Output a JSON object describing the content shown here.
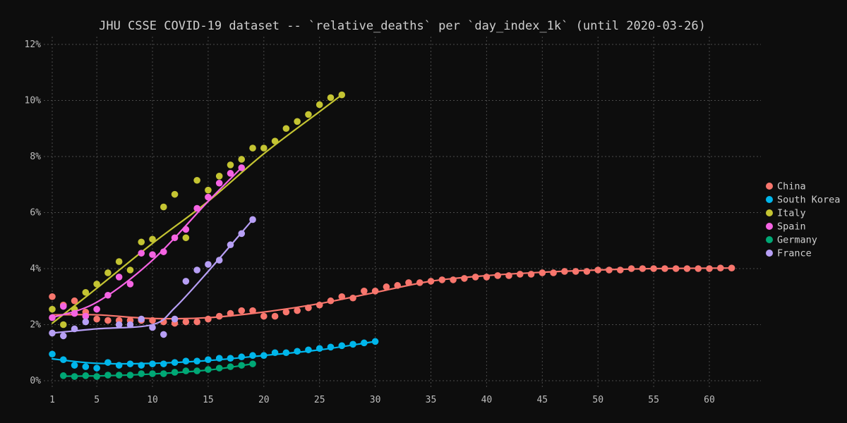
{
  "chart_data": {
    "type": "scatter",
    "title": "JHU CSSE COVID-19 dataset -- `relative_deaths` per `day_index_1k` (until 2020-03-26)",
    "xlabel": "",
    "ylabel": "",
    "xlim": [
      0,
      65
    ],
    "ylim": [
      0,
      12
    ],
    "x_ticks": [
      1,
      5,
      10,
      15,
      20,
      25,
      30,
      35,
      40,
      45,
      50,
      55,
      60
    ],
    "x_tick_labels": [
      "1",
      "5",
      "10",
      "15",
      "20",
      "25",
      "30",
      "35",
      "40",
      "45",
      "50",
      "55",
      "60"
    ],
    "y_ticks": [
      0,
      2,
      4,
      6,
      8,
      10,
      12
    ],
    "y_tick_labels": [
      "0%",
      "2%",
      "4%",
      "6%",
      "8%",
      "10%",
      "12%"
    ],
    "grid": true,
    "legend_position": "right",
    "series": [
      {
        "name": "China",
        "color": "#f8766d",
        "x": [
          1,
          2,
          3,
          4,
          5,
          6,
          7,
          8,
          9,
          10,
          11,
          12,
          13,
          14,
          15,
          16,
          17,
          18,
          19,
          20,
          21,
          22,
          23,
          24,
          25,
          26,
          27,
          28,
          29,
          30,
          31,
          32,
          33,
          34,
          35,
          36,
          37,
          38,
          39,
          40,
          41,
          42,
          43,
          44,
          45,
          46,
          47,
          48,
          49,
          50,
          51,
          52,
          53,
          54,
          55,
          56,
          57,
          58,
          59,
          60,
          61,
          62
        ],
        "y": [
          3.0,
          2.7,
          2.85,
          2.45,
          2.2,
          2.15,
          2.15,
          2.15,
          2.15,
          2.15,
          2.1,
          2.05,
          2.1,
          2.1,
          2.2,
          2.3,
          2.4,
          2.5,
          2.5,
          2.3,
          2.3,
          2.45,
          2.5,
          2.6,
          2.7,
          2.85,
          3.0,
          2.95,
          3.2,
          3.2,
          3.35,
          3.4,
          3.5,
          3.5,
          3.55,
          3.6,
          3.6,
          3.65,
          3.7,
          3.7,
          3.75,
          3.75,
          3.8,
          3.8,
          3.85,
          3.85,
          3.9,
          3.9,
          3.9,
          3.95,
          3.95,
          3.95,
          4.0,
          4.0,
          4.0,
          4.0,
          4.0,
          4.0,
          4.0,
          4.0,
          4.02,
          4.02
        ],
        "trend": [
          [
            1,
            2.35
          ],
          [
            5,
            2.35
          ],
          [
            10,
            2.22
          ],
          [
            15,
            2.25
          ],
          [
            20,
            2.45
          ],
          [
            25,
            2.75
          ],
          [
            30,
            3.15
          ],
          [
            35,
            3.55
          ],
          [
            40,
            3.75
          ],
          [
            45,
            3.87
          ],
          [
            50,
            3.95
          ],
          [
            55,
            4.0
          ],
          [
            62,
            4.02
          ]
        ]
      },
      {
        "name": "South Korea",
        "color": "#00b6eb",
        "x": [
          1,
          2,
          3,
          4,
          5,
          6,
          7,
          8,
          9,
          10,
          11,
          12,
          13,
          14,
          15,
          16,
          17,
          18,
          19,
          20,
          21,
          22,
          23,
          24,
          25,
          26,
          27,
          28,
          29,
          30
        ],
        "y": [
          0.95,
          0.75,
          0.55,
          0.5,
          0.45,
          0.65,
          0.55,
          0.6,
          0.55,
          0.6,
          0.6,
          0.65,
          0.7,
          0.7,
          0.75,
          0.8,
          0.8,
          0.85,
          0.9,
          0.9,
          1.0,
          1.0,
          1.05,
          1.1,
          1.15,
          1.2,
          1.25,
          1.3,
          1.35,
          1.4
        ],
        "trend": [
          [
            1,
            0.78
          ],
          [
            5,
            0.62
          ],
          [
            10,
            0.62
          ],
          [
            15,
            0.72
          ],
          [
            20,
            0.9
          ],
          [
            25,
            1.1
          ],
          [
            30,
            1.4
          ]
        ]
      },
      {
        "name": "Italy",
        "color": "#c4c432",
        "x": [
          1,
          2,
          3,
          4,
          5,
          6,
          7,
          8,
          9,
          10,
          11,
          12,
          13,
          14,
          15,
          16,
          17,
          18,
          19,
          20,
          21,
          22,
          23,
          24,
          25,
          26,
          27
        ],
        "y": [
          2.55,
          2.0,
          2.55,
          3.15,
          3.45,
          3.85,
          4.25,
          3.95,
          4.95,
          5.05,
          6.2,
          6.65,
          5.1,
          7.15,
          6.8,
          7.3,
          7.7,
          7.9,
          8.3,
          8.3,
          8.55,
          9.0,
          9.25,
          9.5,
          9.85,
          10.1,
          10.2
        ],
        "trend": [
          [
            1,
            2.05
          ],
          [
            5,
            3.3
          ],
          [
            10,
            4.9
          ],
          [
            15,
            6.4
          ],
          [
            20,
            8.1
          ],
          [
            25,
            9.6
          ],
          [
            27,
            10.2
          ]
        ]
      },
      {
        "name": "Spain",
        "color": "#f564e3",
        "x": [
          1,
          2,
          3,
          4,
          5,
          6,
          7,
          8,
          9,
          10,
          11,
          12,
          13,
          14,
          15,
          16,
          17,
          18
        ],
        "y": [
          2.25,
          2.65,
          2.4,
          2.3,
          2.55,
          3.05,
          3.7,
          3.45,
          4.55,
          4.5,
          4.6,
          5.1,
          5.4,
          6.15,
          6.55,
          7.05,
          7.4,
          7.6
        ],
        "trend": [
          [
            1,
            2.25
          ],
          [
            5,
            2.8
          ],
          [
            10,
            4.3
          ],
          [
            15,
            6.4
          ],
          [
            18,
            7.6
          ]
        ]
      },
      {
        "name": "Germany",
        "color": "#00a875",
        "x": [
          2,
          3,
          4,
          5,
          6,
          7,
          8,
          9,
          10,
          11,
          12,
          13,
          14,
          15,
          16,
          17,
          18,
          19
        ],
        "y": [
          0.18,
          0.15,
          0.18,
          0.15,
          0.2,
          0.2,
          0.2,
          0.25,
          0.25,
          0.25,
          0.3,
          0.35,
          0.35,
          0.4,
          0.45,
          0.5,
          0.55,
          0.6
        ],
        "trend": [
          [
            2,
            0.16
          ],
          [
            6,
            0.18
          ],
          [
            10,
            0.24
          ],
          [
            15,
            0.38
          ],
          [
            19,
            0.6
          ]
        ]
      },
      {
        "name": "France",
        "color": "#b79ff5",
        "x": [
          1,
          2,
          3,
          4,
          7,
          8,
          9,
          10,
          11,
          12,
          13,
          14,
          15,
          16,
          17,
          18,
          19
        ],
        "y": [
          1.7,
          1.6,
          1.85,
          2.1,
          2.0,
          2.0,
          2.2,
          1.9,
          1.65,
          2.2,
          3.55,
          3.95,
          4.15,
          4.3,
          4.85,
          5.25,
          5.75
        ],
        "trend": [
          [
            1,
            1.7
          ],
          [
            5,
            1.85
          ],
          [
            10,
            2.0
          ],
          [
            12,
            2.6
          ],
          [
            15,
            3.9
          ],
          [
            19,
            5.75
          ]
        ]
      }
    ]
  }
}
